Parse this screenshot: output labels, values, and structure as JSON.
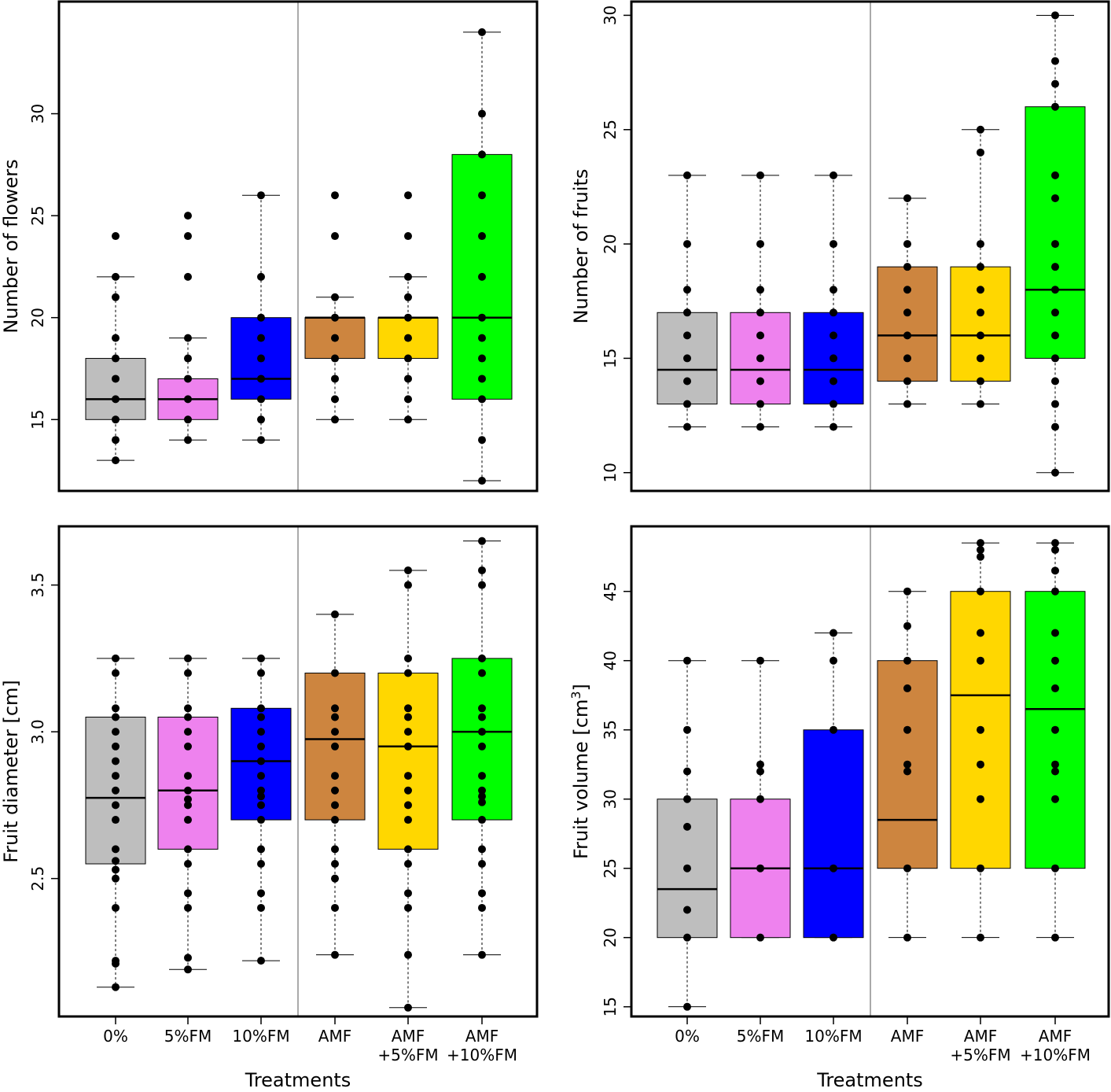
{
  "figure": {
    "xlabel": "Treatments",
    "categories": [
      [
        "0%"
      ],
      [
        "5%FM"
      ],
      [
        "10%FM"
      ],
      [
        "AMF"
      ],
      [
        "AMF",
        "+5%FM"
      ],
      [
        "AMF",
        "+10%FM"
      ]
    ],
    "colors": [
      "#bebebe",
      "#ee82ee",
      "#0000ff",
      "#cd853f",
      "#ffd700",
      "#00ff00"
    ],
    "separator_after_category": 3
  },
  "chart_data": [
    {
      "id": "flowers",
      "type": "box",
      "ylabel": "Number of flowers",
      "ylabel_sup": "",
      "ylabel_end": "",
      "ylim": [
        11.5,
        35.5
      ],
      "yticks": [
        15,
        20,
        25,
        30
      ],
      "ytick_labels": [
        "15",
        "20",
        "25",
        "30"
      ],
      "series": [
        {
          "name": "0%",
          "q1": 15,
          "median": 16,
          "q3": 18,
          "whisker_low": 13,
          "whisker_high": 22,
          "points": [
            13,
            14,
            15,
            16,
            17,
            18,
            19,
            21,
            22,
            24
          ]
        },
        {
          "name": "5%FM",
          "q1": 15,
          "median": 16,
          "q3": 17,
          "whisker_low": 14,
          "whisker_high": 19,
          "points": [
            14,
            15,
            16,
            17,
            18,
            19,
            22,
            24,
            25
          ]
        },
        {
          "name": "10%FM",
          "q1": 16,
          "median": 17,
          "q3": 20,
          "whisker_low": 14,
          "whisker_high": 26,
          "points": [
            14,
            15,
            16,
            17,
            18,
            19,
            20,
            22,
            26
          ]
        },
        {
          "name": "AMF",
          "q1": 18,
          "median": 20,
          "q3": 20,
          "whisker_low": 15,
          "whisker_high": 21,
          "points": [
            15,
            16,
            17,
            18,
            19,
            20,
            21,
            24,
            26
          ]
        },
        {
          "name": "AMF +5%FM",
          "q1": 18,
          "median": 20,
          "q3": 20,
          "whisker_low": 15,
          "whisker_high": 22,
          "points": [
            15,
            16,
            17,
            18,
            19,
            20,
            21,
            22,
            24,
            26
          ]
        },
        {
          "name": "AMF +10%FM",
          "q1": 16,
          "median": 20,
          "q3": 28,
          "whisker_low": 12,
          "whisker_high": 34,
          "points": [
            12,
            14,
            16,
            17,
            18,
            19,
            20,
            22,
            24,
            26,
            28,
            30,
            34
          ]
        }
      ]
    },
    {
      "id": "fruits",
      "type": "box",
      "ylabel": "Number of fruits",
      "ylabel_sup": "",
      "ylabel_end": "",
      "ylim": [
        9.2,
        30.6
      ],
      "yticks": [
        10,
        15,
        20,
        25,
        30
      ],
      "ytick_labels": [
        "10",
        "15",
        "20",
        "25",
        "30"
      ],
      "series": [
        {
          "name": "0%",
          "q1": 13,
          "median": 14.5,
          "q3": 17,
          "whisker_low": 12,
          "whisker_high": 23,
          "points": [
            12,
            13,
            14,
            15,
            16,
            17,
            18,
            20,
            23
          ]
        },
        {
          "name": "5%FM",
          "q1": 13,
          "median": 14.5,
          "q3": 17,
          "whisker_low": 12,
          "whisker_high": 23,
          "points": [
            12,
            13,
            14,
            15,
            16,
            17,
            18,
            20,
            23
          ]
        },
        {
          "name": "10%FM",
          "q1": 13,
          "median": 14.5,
          "q3": 17,
          "whisker_low": 12,
          "whisker_high": 23,
          "points": [
            12,
            13,
            14,
            15,
            16,
            17,
            18,
            20,
            23
          ]
        },
        {
          "name": "AMF",
          "q1": 14,
          "median": 16,
          "q3": 19,
          "whisker_low": 13,
          "whisker_high": 22,
          "points": [
            13,
            14,
            15,
            16,
            17,
            18,
            19,
            20,
            22
          ]
        },
        {
          "name": "AMF +5%FM",
          "q1": 14,
          "median": 16,
          "q3": 19,
          "whisker_low": 13,
          "whisker_high": 25,
          "points": [
            13,
            14,
            15,
            16,
            17,
            18,
            19,
            20,
            24,
            25
          ]
        },
        {
          "name": "AMF +10%FM",
          "q1": 15,
          "median": 18,
          "q3": 26,
          "whisker_low": 10,
          "whisker_high": 30,
          "points": [
            10,
            12,
            13,
            14,
            15,
            16,
            17,
            18,
            19,
            20,
            22,
            23,
            26,
            27,
            28,
            30
          ]
        }
      ]
    },
    {
      "id": "diameter",
      "type": "box",
      "ylabel": "Fruit diameter [cm]",
      "ylabel_sup": "",
      "ylabel_end": "",
      "ylim": [
        2.03,
        3.7
      ],
      "yticks": [
        2.5,
        3.0,
        3.5
      ],
      "ytick_labels": [
        "2.5",
        "3.0",
        "3.5"
      ],
      "series": [
        {
          "name": "0%",
          "q1": 2.55,
          "median": 2.775,
          "q3": 3.05,
          "whisker_low": 2.13,
          "whisker_high": 3.25,
          "points": [
            2.13,
            2.21,
            2.22,
            2.4,
            2.5,
            2.53,
            2.56,
            2.6,
            2.7,
            2.75,
            2.8,
            2.85,
            2.9,
            2.95,
            3.0,
            3.05,
            3.08,
            3.2,
            3.25
          ]
        },
        {
          "name": "5%FM",
          "q1": 2.6,
          "median": 2.8,
          "q3": 3.05,
          "whisker_low": 2.19,
          "whisker_high": 3.25,
          "points": [
            2.19,
            2.23,
            2.4,
            2.45,
            2.55,
            2.6,
            2.7,
            2.75,
            2.77,
            2.8,
            2.85,
            2.95,
            3.0,
            3.05,
            3.08,
            3.2,
            3.25
          ]
        },
        {
          "name": "10%FM",
          "q1": 2.7,
          "median": 2.9,
          "q3": 3.08,
          "whisker_low": 2.22,
          "whisker_high": 3.25,
          "points": [
            2.22,
            2.4,
            2.45,
            2.55,
            2.6,
            2.7,
            2.75,
            2.78,
            2.8,
            2.85,
            2.9,
            2.95,
            3.0,
            3.05,
            3.08,
            3.2,
            3.25
          ]
        },
        {
          "name": "AMF",
          "q1": 2.7,
          "median": 2.975,
          "q3": 3.2,
          "whisker_low": 2.24,
          "whisker_high": 3.4,
          "points": [
            2.24,
            2.4,
            2.5,
            2.55,
            2.6,
            2.7,
            2.75,
            2.8,
            2.85,
            2.95,
            3.0,
            3.05,
            3.08,
            3.2,
            3.4
          ]
        },
        {
          "name": "AMF +5%FM",
          "q1": 2.6,
          "median": 2.95,
          "q3": 3.2,
          "whisker_low": 2.06,
          "whisker_high": 3.55,
          "points": [
            2.06,
            2.24,
            2.4,
            2.45,
            2.55,
            2.6,
            2.7,
            2.75,
            2.8,
            2.85,
            2.95,
            3.0,
            3.05,
            3.08,
            3.2,
            3.25,
            3.5,
            3.55
          ]
        },
        {
          "name": "AMF +10%FM",
          "q1": 2.7,
          "median": 3.0,
          "q3": 3.25,
          "whisker_low": 2.24,
          "whisker_high": 3.65,
          "points": [
            2.24,
            2.4,
            2.45,
            2.55,
            2.6,
            2.7,
            2.76,
            2.78,
            2.8,
            2.85,
            2.95,
            3.0,
            3.05,
            3.08,
            3.2,
            3.25,
            3.5,
            3.55,
            3.65
          ]
        }
      ]
    },
    {
      "id": "volume",
      "type": "box",
      "ylabel": "Fruit volume [cm",
      "ylabel_sup": "3",
      "ylabel_end": "]",
      "ylim": [
        14.3,
        49.7
      ],
      "yticks": [
        15,
        20,
        25,
        30,
        35,
        40,
        45
      ],
      "ytick_labels": [
        "15",
        "20",
        "25",
        "30",
        "35",
        "40",
        "45"
      ],
      "series": [
        {
          "name": "0%",
          "q1": 20,
          "median": 23.5,
          "q3": 30,
          "whisker_low": 15,
          "whisker_high": 40,
          "points": [
            15,
            20,
            22,
            25,
            28,
            30,
            32,
            35,
            40
          ]
        },
        {
          "name": "5%FM",
          "q1": 20,
          "median": 25,
          "q3": 30,
          "whisker_low": 20,
          "whisker_high": 40,
          "points": [
            20,
            25,
            30,
            32,
            32.5,
            40
          ]
        },
        {
          "name": "10%FM",
          "q1": 20,
          "median": 25,
          "q3": 35,
          "whisker_low": 20,
          "whisker_high": 42,
          "points": [
            20,
            25,
            35,
            40,
            42
          ]
        },
        {
          "name": "AMF",
          "q1": 25,
          "median": 28.5,
          "q3": 40,
          "whisker_low": 20,
          "whisker_high": 45,
          "points": [
            20,
            25,
            32,
            32.5,
            35,
            38,
            40,
            42.5,
            45
          ]
        },
        {
          "name": "AMF +5%FM",
          "q1": 25,
          "median": 37.5,
          "q3": 45,
          "whisker_low": 20,
          "whisker_high": 48.5,
          "points": [
            20,
            25,
            30,
            32.5,
            35,
            40,
            42,
            45,
            47.5,
            48,
            48.5
          ]
        },
        {
          "name": "AMF +10%FM",
          "q1": 25,
          "median": 36.5,
          "q3": 45,
          "whisker_low": 20,
          "whisker_high": 48.5,
          "points": [
            20,
            25,
            30,
            32,
            32.5,
            35,
            38,
            40,
            42,
            45,
            46.5,
            48,
            48.5
          ]
        }
      ]
    }
  ]
}
